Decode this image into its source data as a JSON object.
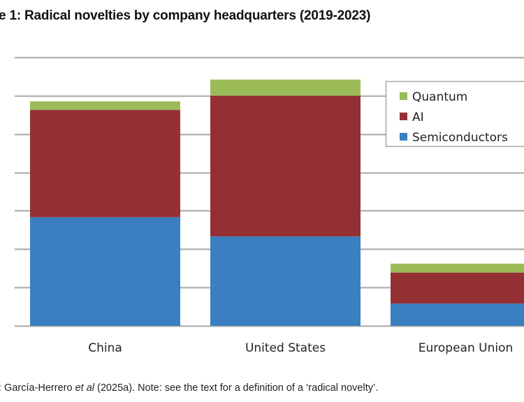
{
  "title": "e 1: Radical novelties by company headquarters (2019-2023)",
  "source": {
    "prefix": ": García-Herrero ",
    "italic": "et al",
    "suffix": " (2025a). Note: see the text for a definition of a ‘radical novelty’."
  },
  "chart_data": {
    "type": "bar",
    "stacked": true,
    "title": "Radical novelties by company headquarters (2019-2023)",
    "xlabel": "",
    "ylabel": "",
    "categories": [
      "China",
      "United States",
      "European Union"
    ],
    "series": [
      {
        "name": "Semiconductors",
        "color": "#3A7FC0",
        "values": [
          283,
          233,
          58
        ]
      },
      {
        "name": "AI",
        "color": "#943034",
        "values": [
          280,
          367,
          81
        ]
      },
      {
        "name": "Quantum",
        "color": "#9BBB59",
        "values": [
          22,
          42,
          23
        ]
      }
    ],
    "ylim": [
      0,
      700
    ],
    "ytick_step": 100,
    "ytick_labels_visible": false,
    "grid": true,
    "gridline_color": "#A6A6A6",
    "legend": {
      "placement": "top-right",
      "order": [
        "Quantum",
        "AI",
        "Semiconductors"
      ]
    }
  }
}
